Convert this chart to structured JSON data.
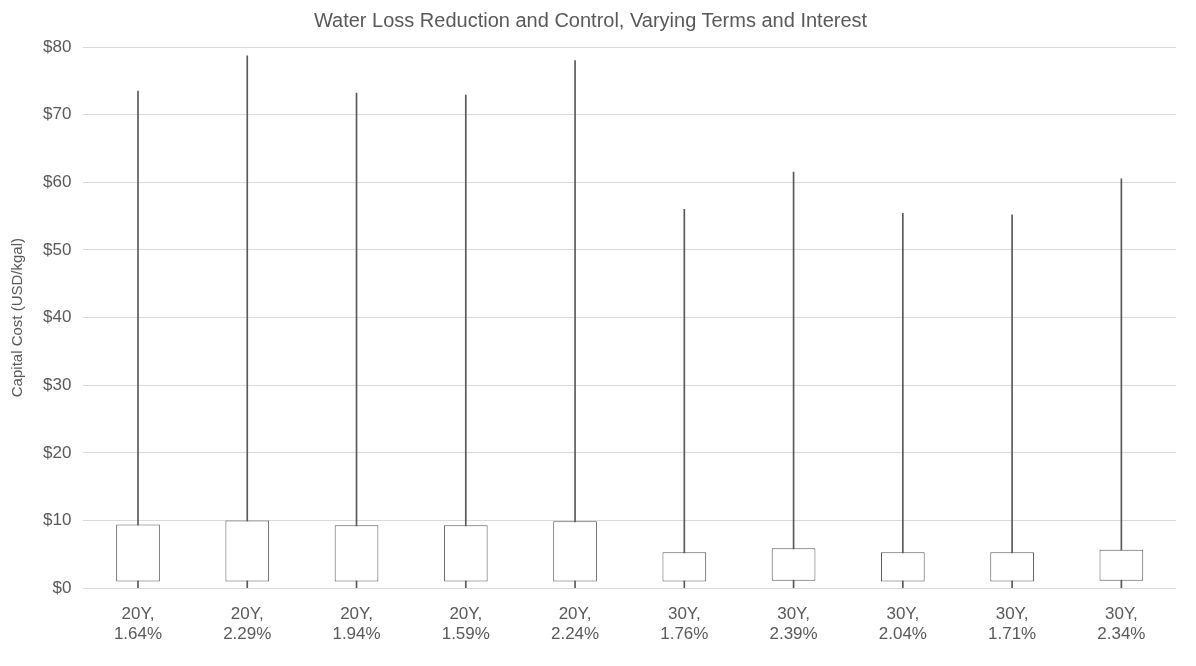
{
  "chart_data": {
    "type": "candlestick",
    "title": "Water Loss Reduction and Control, Varying Terms and Interest",
    "ylabel": "Capital Cost (USD/kgal)",
    "categories": [
      [
        "20Y,",
        "1.64%"
      ],
      [
        "20Y,",
        "2.29%"
      ],
      [
        "20Y,",
        "1.94%"
      ],
      [
        "20Y,",
        "1.59%"
      ],
      [
        "20Y,",
        "2.24%"
      ],
      [
        "30Y,",
        "1.76%"
      ],
      [
        "30Y,",
        "2.39%"
      ],
      [
        "30Y,",
        "2.04%"
      ],
      [
        "30Y,",
        "1.71%"
      ],
      [
        "30Y,",
        "2.34%"
      ]
    ],
    "ohlc": [
      [
        1.0,
        73.5,
        0,
        9.4
      ],
      [
        1.0,
        78.7,
        0,
        10.0
      ],
      [
        1.0,
        73.2,
        0,
        9.3
      ],
      [
        1.0,
        72.9,
        0,
        9.3
      ],
      [
        1.0,
        78.0,
        0,
        9.9
      ],
      [
        1.0,
        56.0,
        0,
        5.3
      ],
      [
        1.1,
        61.5,
        0,
        5.9
      ],
      [
        1.0,
        55.4,
        0,
        5.3
      ],
      [
        1.0,
        55.2,
        0,
        5.3
      ],
      [
        1.1,
        60.5,
        0,
        5.7
      ]
    ],
    "color": "#595959",
    "ylim": [
      0,
      80
    ],
    "yticks": [
      {
        "value": 0,
        "label": "$0"
      },
      {
        "value": 10,
        "label": "$10"
      },
      {
        "value": 20,
        "label": "$20"
      },
      {
        "value": 30,
        "label": "$30"
      },
      {
        "value": 40,
        "label": "$40"
      },
      {
        "value": 50,
        "label": "$50"
      },
      {
        "value": 60,
        "label": "$60"
      },
      {
        "value": 70,
        "label": "$70"
      },
      {
        "value": 80,
        "label": "$80"
      }
    ],
    "grid": "y"
  }
}
